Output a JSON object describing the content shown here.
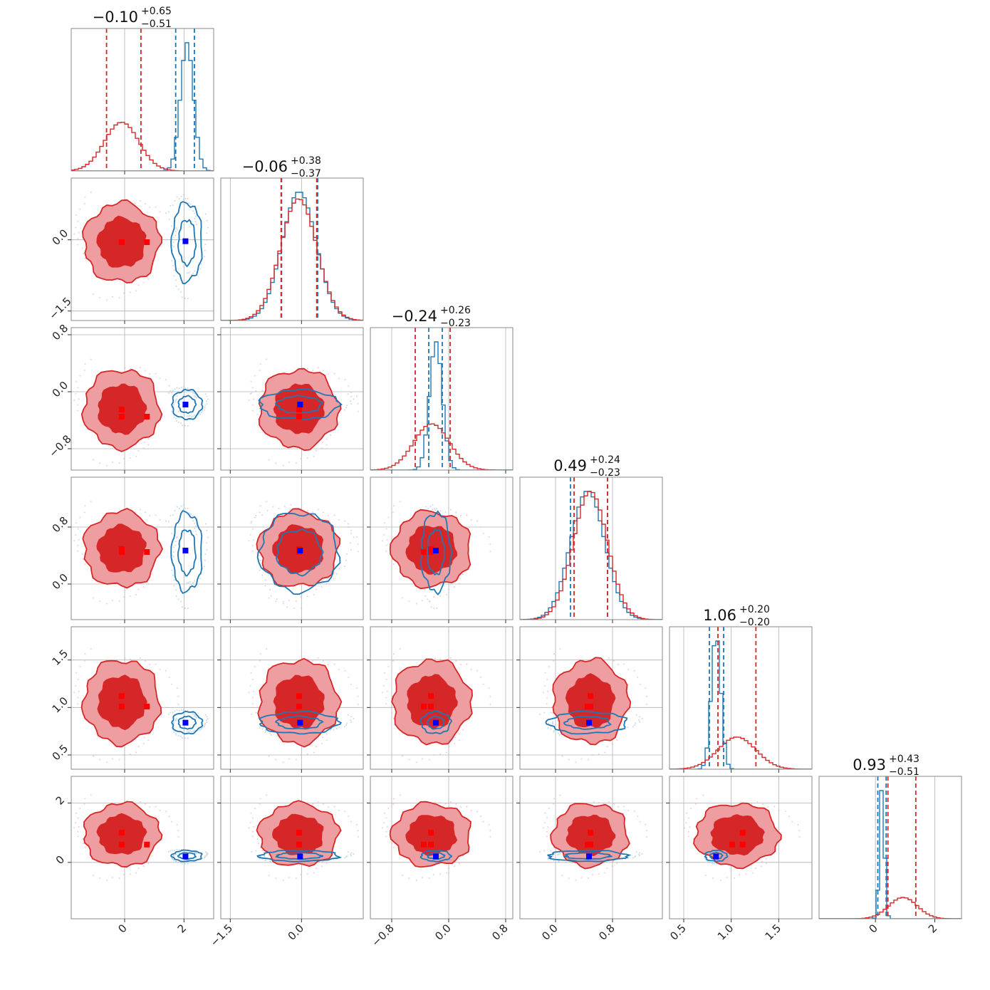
{
  "chart_data": {
    "type": "scatter",
    "subtype": "corner-plot",
    "n_params": 6,
    "grid": true,
    "colors": {
      "red": "#d62728",
      "red_light": "#ee9ea0",
      "blue": "#1f77b4",
      "truth_red": "#ff0000",
      "truth_blue": "#0000ff"
    },
    "params": [
      {
        "index": 0,
        "range": [
          -1.8,
          3.0
        ],
        "ticks": [
          0,
          2
        ],
        "tick_labels": [
          "0",
          "2"
        ],
        "title": {
          "value": "−0.10",
          "plus": "+0.65",
          "minus": "−0.51"
        },
        "red": {
          "mean": -0.1,
          "sd": 0.58,
          "q": [
            -0.61,
            0.55
          ]
        },
        "blue": {
          "mean": 2.1,
          "sd": 0.22,
          "q": [
            1.72,
            2.35
          ]
        },
        "truth_blue": 2.05,
        "truth_red": [
          -0.1,
          0.75
        ]
      },
      {
        "index": 1,
        "range": [
          -1.7,
          1.3
        ],
        "ticks": [
          -1.5,
          0.0
        ],
        "tick_labels": [
          "−1.5",
          "0.0"
        ],
        "title": {
          "value": "−0.06",
          "plus": "+0.38",
          "minus": "−0.37"
        },
        "red": {
          "mean": -0.06,
          "sd": 0.38,
          "q": [
            -0.43,
            0.32
          ]
        },
        "blue": {
          "mean": -0.05,
          "sd": 0.36,
          "q": [
            -0.42,
            0.34
          ]
        },
        "truth_blue": -0.03,
        "truth_red": [
          -0.05,
          -0.05
        ]
      },
      {
        "index": 2,
        "range": [
          -1.1,
          0.9
        ],
        "ticks": [
          -0.8,
          0.0,
          0.8
        ],
        "tick_labels": [
          "−0.8",
          "0.0",
          "0.8"
        ],
        "title": {
          "value": "−0.24",
          "plus": "+0.26",
          "minus": "−0.23"
        },
        "red": {
          "mean": -0.24,
          "sd": 0.25,
          "q": [
            -0.47,
            0.02
          ]
        },
        "blue": {
          "mean": -0.18,
          "sd": 0.09,
          "q": [
            -0.28,
            -0.09
          ]
        },
        "truth_blue": -0.18,
        "truth_red": [
          -0.25,
          -0.35
        ]
      },
      {
        "index": 3,
        "range": [
          -0.5,
          1.5
        ],
        "ticks": [
          0.0,
          0.8
        ],
        "tick_labels": [
          "0.0",
          "0.8"
        ],
        "title": {
          "value": "0.49",
          "plus": "+0.24",
          "minus": "−0.23"
        },
        "red": {
          "mean": 0.49,
          "sd": 0.24,
          "q": [
            0.26,
            0.73
          ]
        },
        "blue": {
          "mean": 0.45,
          "sd": 0.24,
          "q": [
            0.21,
            0.73
          ]
        },
        "truth_blue": 0.47,
        "truth_red": [
          0.49,
          0.45
        ]
      },
      {
        "index": 4,
        "range": [
          0.35,
          1.85
        ],
        "ticks": [
          0.5,
          1.0,
          1.5
        ],
        "tick_labels": [
          "0.5",
          "1.0",
          "1.5"
        ],
        "title": {
          "value": "1.06",
          "plus": "+0.20",
          "minus": "−0.20"
        },
        "red": {
          "mean": 1.06,
          "sd": 0.2,
          "q": [
            0.86,
            1.26
          ]
        },
        "blue": {
          "mean": 0.84,
          "sd": 0.05,
          "q": [
            0.77,
            0.92
          ]
        },
        "truth_blue": 0.84,
        "truth_red": [
          1.12,
          1.01
        ]
      },
      {
        "index": 5,
        "range": [
          -1.9,
          2.9
        ],
        "ticks": [
          0,
          2
        ],
        "tick_labels": [
          "0",
          "2"
        ],
        "title": {
          "value": "0.93",
          "plus": "+0.43",
          "minus": "−0.51"
        },
        "red": {
          "mean": 0.93,
          "sd": 0.48,
          "q": [
            0.42,
            1.36
          ]
        },
        "blue": {
          "mean": 0.22,
          "sd": 0.08,
          "q": [
            0.08,
            0.36
          ]
        },
        "truth_blue": 0.2,
        "truth_red": [
          1.0,
          0.6
        ]
      }
    ]
  }
}
